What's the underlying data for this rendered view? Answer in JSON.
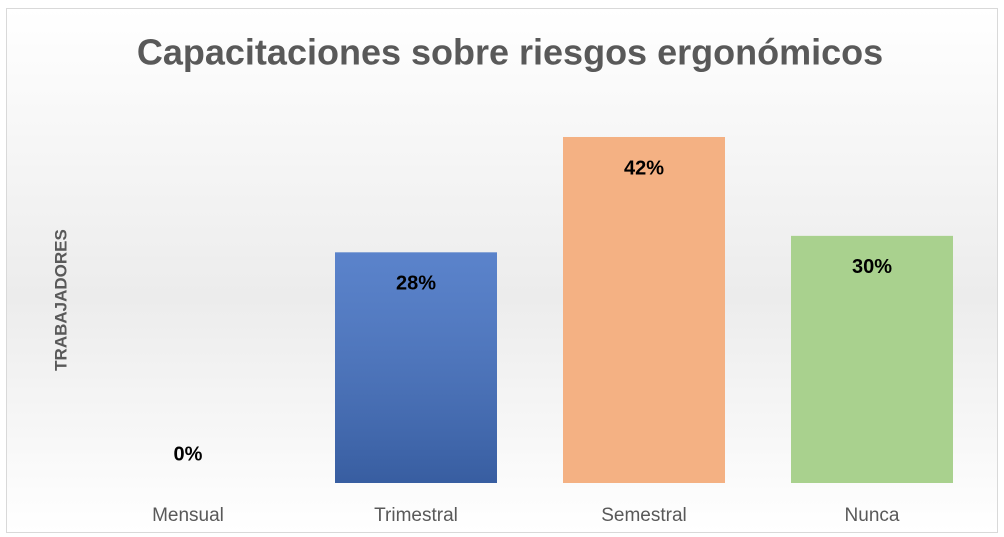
{
  "chart_data": {
    "type": "bar",
    "title": "Capacitaciones sobre riesgos ergonómicos",
    "y_label": "TRABAJADORES",
    "categories": [
      "Mensual",
      "Trimestral",
      "Semestral",
      "Nunca"
    ],
    "values": [
      0,
      28,
      42,
      30
    ],
    "value_labels": [
      "0%",
      "28%",
      "42%",
      "30%"
    ],
    "colors": [
      "#4472c4",
      "#4472c4",
      "#f4b183",
      "#a9d18e"
    ]
  }
}
